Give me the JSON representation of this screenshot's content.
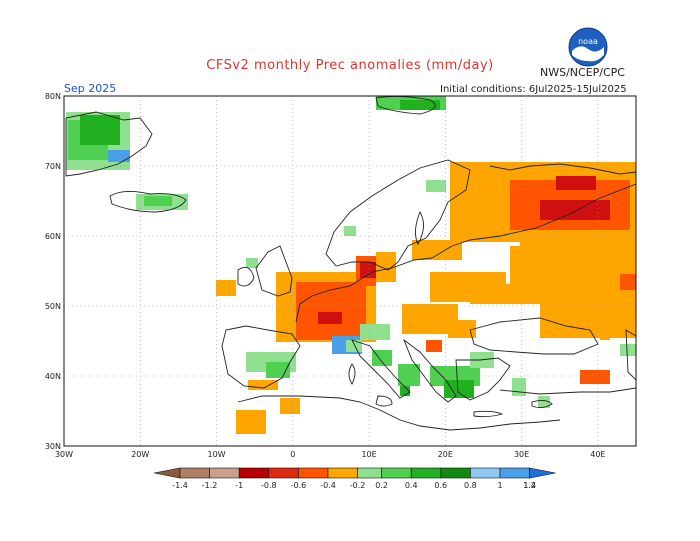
{
  "header": {
    "title": "CFSv2 monthly Prec anomalies (mm/day)",
    "agency": "NWS/NCEP/CPC",
    "period": "Sep 2025",
    "initial_conditions": "Initial conditions: 6Jul2025-15Jul2025"
  },
  "logo": {
    "icon": "noaa-logo-icon",
    "text": "noaa"
  },
  "map": {
    "lat_labels": [
      "80N",
      "70N",
      "60N",
      "50N",
      "40N",
      "30N"
    ],
    "lon_labels": [
      "30W",
      "20W",
      "10W",
      "0",
      "10E",
      "20E",
      "30E",
      "40E"
    ],
    "lon_range": [
      -30,
      45
    ],
    "lat_range": [
      30,
      80
    ]
  },
  "legend": {
    "ticks": [
      "-1.4",
      "-1.2",
      "-1",
      "-0.8",
      "-0.6",
      "-0.4",
      "-0.2",
      "0.2",
      "0.4",
      "0.6",
      "0.8",
      "1",
      "1.2",
      "1.4"
    ],
    "colors": {
      "lt_-1.4": "#8b5a3c",
      "-1.4_-1.2": "#b07c62",
      "-1.2_-1": "#c9a08e",
      "-1_-0.8": "#b80000",
      "-0.8_-0.6": "#e02a10",
      "-0.6_-0.4": "#ff5500",
      "-0.4_-0.2": "#ffa500",
      "0.2_0.4": "#8fe08f",
      "0.4_0.6": "#50d050",
      "0.6_0.8": "#20b020",
      "0.8_1": "#108a10",
      "1_1.2": "#90c8f0",
      "1.2_1.4": "#4aa0e8",
      "gt_1.4": "#2070d8"
    }
  },
  "colors": {
    "dry_orange": "#ffa500",
    "dry_red": "#ff5500",
    "dry_darkred": "#d01010",
    "wet_lightgreen": "#8fe08f",
    "wet_green": "#50d050",
    "wet_darkgreen": "#20b020",
    "wet_blue": "#4aa0e8"
  }
}
